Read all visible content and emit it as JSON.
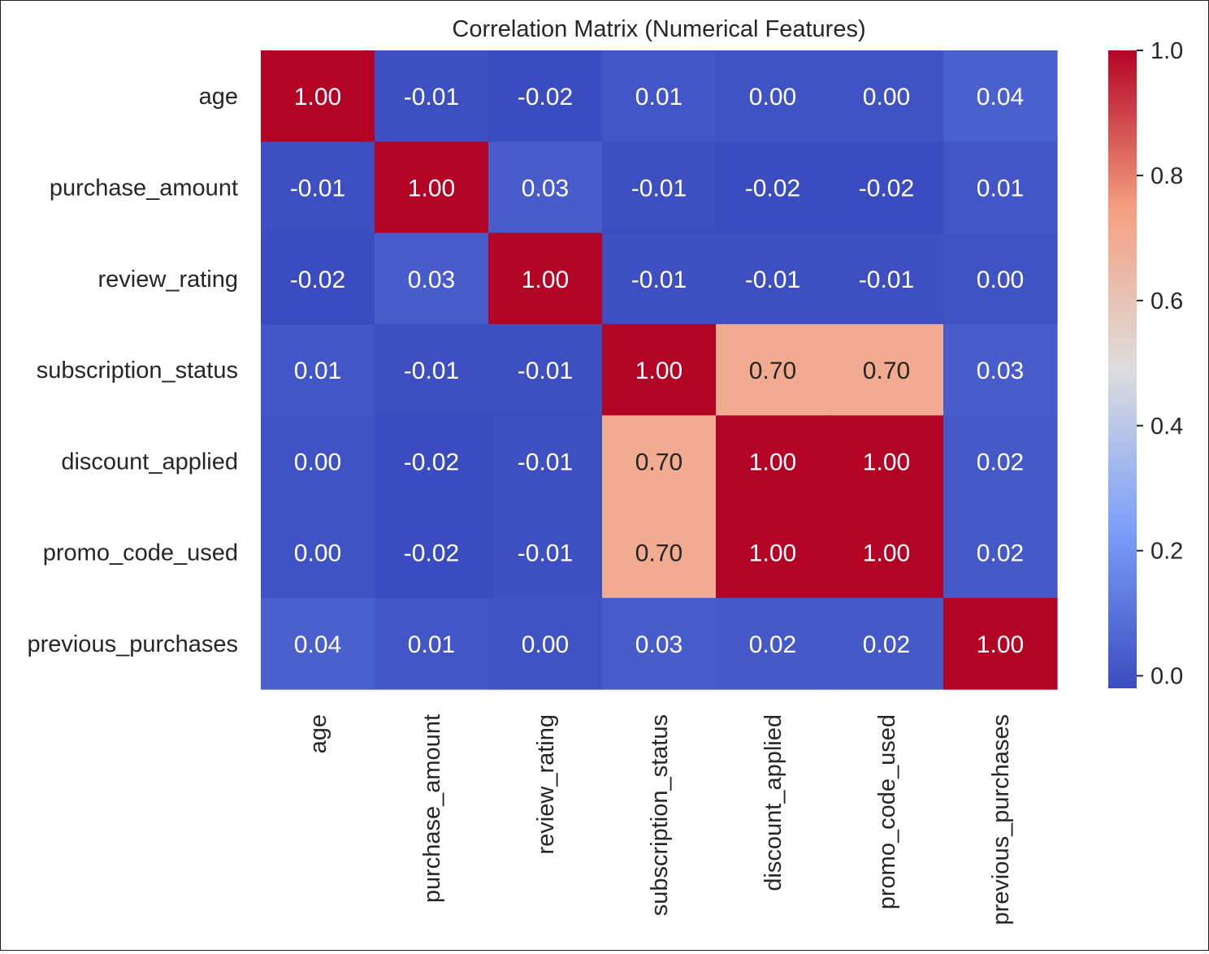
{
  "chart_data": {
    "type": "heatmap",
    "title": "Correlation Matrix (Numerical Features)",
    "row_labels": [
      "age",
      "purchase_amount",
      "review_rating",
      "subscription_status",
      "discount_applied",
      "promo_code_used",
      "previous_purchases"
    ],
    "col_labels": [
      "age",
      "purchase_amount",
      "review_rating",
      "subscription_status",
      "discount_applied",
      "promo_code_used",
      "previous_purchases"
    ],
    "values": [
      [
        1.0,
        -0.01,
        -0.02,
        0.01,
        0.0,
        0.0,
        0.04
      ],
      [
        -0.01,
        1.0,
        0.03,
        -0.01,
        -0.02,
        -0.02,
        0.01
      ],
      [
        -0.02,
        0.03,
        1.0,
        -0.01,
        -0.01,
        -0.01,
        0.0
      ],
      [
        0.01,
        -0.01,
        -0.01,
        1.0,
        0.7,
        0.7,
        0.03
      ],
      [
        0.0,
        -0.02,
        -0.01,
        0.7,
        1.0,
        1.0,
        0.02
      ],
      [
        0.0,
        -0.02,
        -0.01,
        0.7,
        1.0,
        1.0,
        0.02
      ],
      [
        0.04,
        0.01,
        0.0,
        0.03,
        0.02,
        0.02,
        1.0
      ]
    ],
    "value_format": "2 decimals",
    "colormap": "coolwarm",
    "color_range": [
      -0.02,
      1.0
    ],
    "colorbar": {
      "ticks": [
        0.0,
        0.2,
        0.4,
        0.6,
        0.8,
        1.0
      ],
      "tick_labels": [
        "0.0",
        "0.2",
        "0.4",
        "0.6",
        "0.8",
        "1.0"
      ],
      "placement": "right"
    },
    "colors": {
      "low": "#3b4cc0",
      "mid": "#dddddd",
      "high": "#b40426",
      "annotation_light": "#ffffff",
      "annotation_dark": "#262626",
      "text": "#262626"
    }
  }
}
